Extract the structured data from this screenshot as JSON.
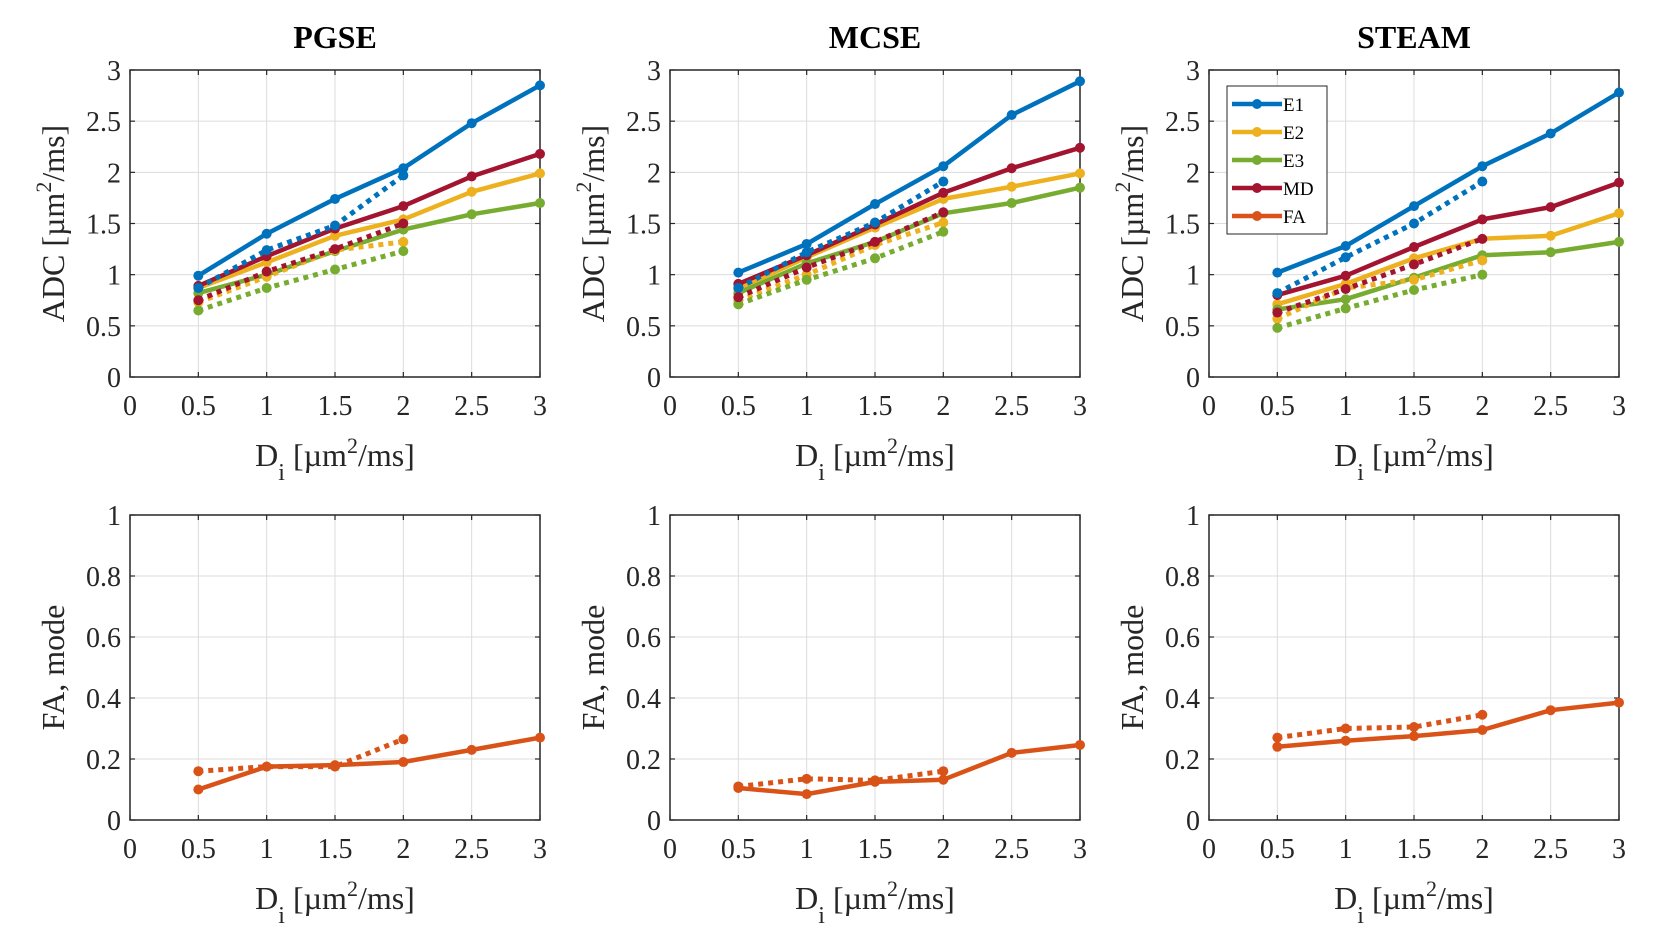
{
  "chart_data": [
    {
      "type": "line",
      "panel": "top-left",
      "title": "PGSE",
      "xlabel": "D_i [µm^2/ms]",
      "ylabel": "ADC [µm^2/ms]",
      "xlim": [
        0,
        3
      ],
      "ylim": [
        0,
        3
      ],
      "xticks": [
        "0",
        "0.5",
        "1",
        "1.5",
        "2",
        "2.5",
        "3"
      ],
      "yticks": [
        "0",
        "0.5",
        "1",
        "1.5",
        "2",
        "2.5",
        "3"
      ],
      "grid": true,
      "series": [
        {
          "name": "E1",
          "style": "solid",
          "x": [
            0.5,
            1,
            1.5,
            2,
            2.5,
            3
          ],
          "y": [
            0.99,
            1.4,
            1.74,
            2.04,
            2.48,
            2.85
          ]
        },
        {
          "name": "E2",
          "style": "solid",
          "x": [
            0.5,
            1,
            1.5,
            2,
            2.5,
            3
          ],
          "y": [
            0.87,
            1.12,
            1.38,
            1.54,
            1.81,
            1.99
          ]
        },
        {
          "name": "E3",
          "style": "solid",
          "x": [
            0.5,
            1,
            1.5,
            2,
            2.5,
            3
          ],
          "y": [
            0.82,
            1.0,
            1.23,
            1.44,
            1.59,
            1.7
          ]
        },
        {
          "name": "MD",
          "style": "solid",
          "x": [
            0.5,
            1,
            1.5,
            2,
            2.5,
            3
          ],
          "y": [
            0.89,
            1.18,
            1.45,
            1.67,
            1.96,
            2.18
          ]
        },
        {
          "name": "E1",
          "style": "dotted",
          "x": [
            0.5,
            1,
            1.5,
            2
          ],
          "y": [
            0.87,
            1.24,
            1.48,
            1.97
          ]
        },
        {
          "name": "E2",
          "style": "dotted",
          "x": [
            0.5,
            1,
            1.5,
            2
          ],
          "y": [
            0.73,
            0.98,
            1.24,
            1.32
          ]
        },
        {
          "name": "E3",
          "style": "dotted",
          "x": [
            0.5,
            1,
            1.5,
            2
          ],
          "y": [
            0.65,
            0.87,
            1.05,
            1.23
          ]
        },
        {
          "name": "MD",
          "style": "dotted",
          "x": [
            0.5,
            1,
            1.5,
            2
          ],
          "y": [
            0.75,
            1.03,
            1.25,
            1.5
          ]
        }
      ]
    },
    {
      "type": "line",
      "panel": "top-center",
      "title": "MCSE",
      "xlabel": "D_i [µm^2/ms]",
      "ylabel": "ADC [µm^2/ms]",
      "xlim": [
        0,
        3
      ],
      "ylim": [
        0,
        3
      ],
      "xticks": [
        "0",
        "0.5",
        "1",
        "1.5",
        "2",
        "2.5",
        "3"
      ],
      "yticks": [
        "0",
        "0.5",
        "1",
        "1.5",
        "2",
        "2.5",
        "3"
      ],
      "grid": true,
      "series": [
        {
          "name": "E1",
          "style": "solid",
          "x": [
            0.5,
            1,
            1.5,
            2,
            2.5,
            3
          ],
          "y": [
            1.02,
            1.3,
            1.69,
            2.06,
            2.56,
            2.89
          ]
        },
        {
          "name": "E2",
          "style": "solid",
          "x": [
            0.5,
            1,
            1.5,
            2,
            2.5,
            3
          ],
          "y": [
            0.86,
            1.17,
            1.46,
            1.74,
            1.86,
            1.99
          ]
        },
        {
          "name": "E3",
          "style": "solid",
          "x": [
            0.5,
            1,
            1.5,
            2,
            2.5,
            3
          ],
          "y": [
            0.82,
            1.11,
            1.32,
            1.6,
            1.7,
            1.85
          ]
        },
        {
          "name": "MD",
          "style": "solid",
          "x": [
            0.5,
            1,
            1.5,
            2,
            2.5,
            3
          ],
          "y": [
            0.91,
            1.19,
            1.49,
            1.8,
            2.04,
            2.24
          ]
        },
        {
          "name": "E1",
          "style": "dotted",
          "x": [
            0.5,
            1,
            1.5,
            2
          ],
          "y": [
            0.87,
            1.22,
            1.51,
            1.91
          ]
        },
        {
          "name": "E2",
          "style": "dotted",
          "x": [
            0.5,
            1,
            1.5,
            2
          ],
          "y": [
            0.75,
            1.0,
            1.29,
            1.51
          ]
        },
        {
          "name": "E3",
          "style": "dotted",
          "x": [
            0.5,
            1,
            1.5,
            2
          ],
          "y": [
            0.71,
            0.95,
            1.16,
            1.42
          ]
        },
        {
          "name": "MD",
          "style": "dotted",
          "x": [
            0.5,
            1,
            1.5,
            2
          ],
          "y": [
            0.78,
            1.07,
            1.32,
            1.61
          ]
        }
      ]
    },
    {
      "type": "line",
      "panel": "top-right",
      "title": "STEAM",
      "xlabel": "D_i [µm^2/ms]",
      "ylabel": "ADC [µm^2/ms]",
      "xlim": [
        0,
        3
      ],
      "ylim": [
        0,
        3
      ],
      "xticks": [
        "0",
        "0.5",
        "1",
        "1.5",
        "2",
        "2.5",
        "3"
      ],
      "yticks": [
        "0",
        "0.5",
        "1",
        "1.5",
        "2",
        "2.5",
        "3"
      ],
      "grid": true,
      "legend": {
        "placement": "top-left",
        "entries": [
          "E1",
          "E2",
          "E3",
          "MD",
          "FA"
        ]
      },
      "series": [
        {
          "name": "E1",
          "style": "solid",
          "x": [
            0.5,
            1,
            1.5,
            2,
            2.5,
            3
          ],
          "y": [
            1.02,
            1.28,
            1.67,
            2.06,
            2.38,
            2.78
          ]
        },
        {
          "name": "E2",
          "style": "solid",
          "x": [
            0.5,
            1,
            1.5,
            2,
            2.5,
            3
          ],
          "y": [
            0.71,
            0.91,
            1.16,
            1.35,
            1.38,
            1.6
          ]
        },
        {
          "name": "E3",
          "style": "solid",
          "x": [
            0.5,
            1,
            1.5,
            2,
            2.5,
            3
          ],
          "y": [
            0.66,
            0.76,
            0.97,
            1.19,
            1.22,
            1.32
          ]
        },
        {
          "name": "MD",
          "style": "solid",
          "x": [
            0.5,
            1,
            1.5,
            2,
            2.5,
            3
          ],
          "y": [
            0.8,
            0.99,
            1.27,
            1.54,
            1.66,
            1.9
          ]
        },
        {
          "name": "E1",
          "style": "dotted",
          "x": [
            0.5,
            1,
            1.5,
            2
          ],
          "y": [
            0.82,
            1.17,
            1.5,
            1.91
          ]
        },
        {
          "name": "E2",
          "style": "dotted",
          "x": [
            0.5,
            1,
            1.5,
            2
          ],
          "y": [
            0.57,
            0.87,
            0.95,
            1.14
          ]
        },
        {
          "name": "E3",
          "style": "dotted",
          "x": [
            0.5,
            1,
            1.5,
            2
          ],
          "y": [
            0.48,
            0.67,
            0.85,
            1.0
          ]
        },
        {
          "name": "MD",
          "style": "dotted",
          "x": [
            0.5,
            1,
            1.5,
            2
          ],
          "y": [
            0.63,
            0.86,
            1.1,
            1.35
          ]
        }
      ]
    },
    {
      "type": "line",
      "panel": "bottom-left",
      "title": "",
      "xlabel": "D_i [µm^2/ms]",
      "ylabel": "FA, mode",
      "xlim": [
        0,
        3
      ],
      "ylim": [
        0,
        1
      ],
      "xticks": [
        "0",
        "0.5",
        "1",
        "1.5",
        "2",
        "2.5",
        "3"
      ],
      "yticks": [
        "0",
        "0.2",
        "0.4",
        "0.6",
        "0.8",
        "1"
      ],
      "grid": true,
      "series": [
        {
          "name": "FA",
          "style": "solid",
          "x": [
            0.5,
            1,
            1.5,
            2,
            2.5,
            3
          ],
          "y": [
            0.1,
            0.175,
            0.18,
            0.19,
            0.23,
            0.27
          ]
        },
        {
          "name": "FA",
          "style": "dotted",
          "x": [
            0.5,
            1,
            1.5,
            2
          ],
          "y": [
            0.16,
            0.175,
            0.175,
            0.265
          ]
        }
      ]
    },
    {
      "type": "line",
      "panel": "bottom-center",
      "title": "",
      "xlabel": "D_i [µm^2/ms]",
      "ylabel": "FA, mode",
      "xlim": [
        0,
        3
      ],
      "ylim": [
        0,
        1
      ],
      "xticks": [
        "0",
        "0.5",
        "1",
        "1.5",
        "2",
        "2.5",
        "3"
      ],
      "yticks": [
        "0",
        "0.2",
        "0.4",
        "0.6",
        "0.8",
        "1"
      ],
      "grid": true,
      "series": [
        {
          "name": "FA",
          "style": "solid",
          "x": [
            0.5,
            1,
            1.5,
            2,
            2.5,
            3
          ],
          "y": [
            0.105,
            0.085,
            0.125,
            0.132,
            0.22,
            0.246
          ]
        },
        {
          "name": "FA",
          "style": "dotted",
          "x": [
            0.5,
            1,
            1.5,
            2
          ],
          "y": [
            0.11,
            0.135,
            0.13,
            0.16
          ]
        }
      ]
    },
    {
      "type": "line",
      "panel": "bottom-right",
      "title": "",
      "xlabel": "D_i [µm^2/ms]",
      "ylabel": "FA, mode",
      "xlim": [
        0,
        3
      ],
      "ylim": [
        0,
        1
      ],
      "xticks": [
        "0",
        "0.5",
        "1",
        "1.5",
        "2",
        "2.5",
        "3"
      ],
      "yticks": [
        "0",
        "0.2",
        "0.4",
        "0.6",
        "0.8",
        "1"
      ],
      "grid": true,
      "series": [
        {
          "name": "FA",
          "style": "solid",
          "x": [
            0.5,
            1,
            1.5,
            2,
            2.5,
            3
          ],
          "y": [
            0.24,
            0.26,
            0.275,
            0.295,
            0.36,
            0.385
          ]
        },
        {
          "name": "FA",
          "style": "dotted",
          "x": [
            0.5,
            1,
            1.5,
            2
          ],
          "y": [
            0.27,
            0.3,
            0.305,
            0.345
          ]
        }
      ]
    }
  ],
  "colors": {
    "E1": "#0072BD",
    "E2": "#EDB120",
    "E3": "#77AC30",
    "MD": "#A2142F",
    "FA": "#D95319",
    "grid": "#dcdcdc",
    "axis": "#262626"
  },
  "labels": {
    "xlabel_main": "D",
    "xlabel_sub": "i",
    "xlabel_unit_pre": " [µm",
    "xlabel_sup": "2",
    "xlabel_unit_post": "/ms]",
    "adc_pre": "ADC [µm",
    "adc_sup": "2",
    "adc_post": "/ms]",
    "fa_ylabel": "FA, mode"
  }
}
